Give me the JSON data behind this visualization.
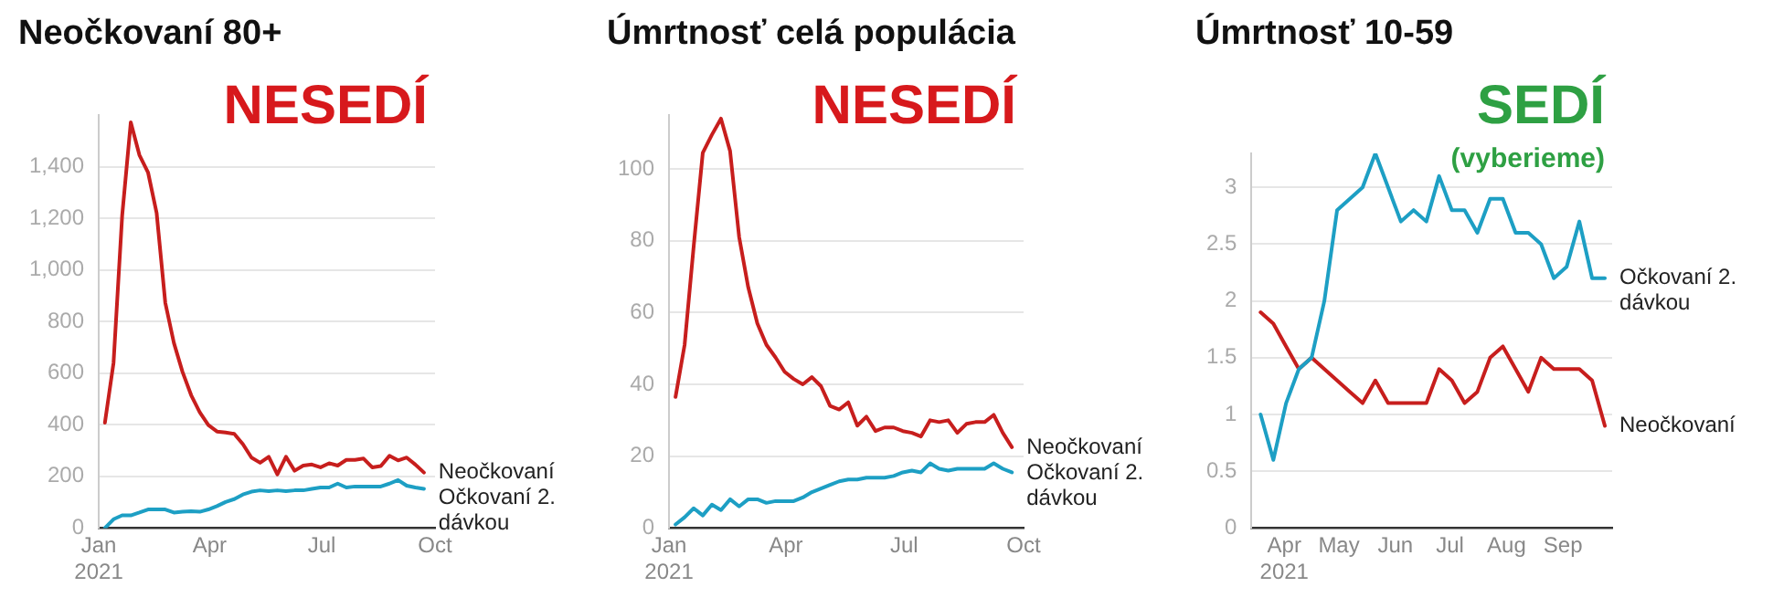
{
  "chart_data": [
    {
      "type": "line",
      "title": "Neočkovaní 80+",
      "annotations": [
        "NESEDÍ"
      ],
      "grid": "y",
      "legend": false,
      "marker": "none",
      "line_style": "solid",
      "x": [
        "2021-01-06",
        "2021-01-13",
        "2021-01-20",
        "2021-01-27",
        "2021-02-03",
        "2021-02-10",
        "2021-02-17",
        "2021-02-24",
        "2021-03-03",
        "2021-03-10",
        "2021-03-17",
        "2021-03-24",
        "2021-03-31",
        "2021-04-07",
        "2021-04-14",
        "2021-04-21",
        "2021-04-28",
        "2021-05-05",
        "2021-05-12",
        "2021-05-19",
        "2021-05-26",
        "2021-06-02",
        "2021-06-09",
        "2021-06-16",
        "2021-06-23",
        "2021-06-30",
        "2021-07-07",
        "2021-07-14",
        "2021-07-21",
        "2021-07-28",
        "2021-08-04",
        "2021-08-11",
        "2021-08-18",
        "2021-08-25",
        "2021-09-01",
        "2021-09-08",
        "2021-09-15",
        "2021-09-22"
      ],
      "xlim": [
        "2021-01-01",
        "2021-10-01"
      ],
      "xticks": [
        {
          "value": "2021-01-01",
          "label": "Jan\n2021"
        },
        {
          "value": "2021-04-01",
          "label": "Apr"
        },
        {
          "value": "2021-07-01",
          "label": "Jul"
        },
        {
          "value": "2021-10-01",
          "label": "Oct"
        }
      ],
      "ylim": [
        0,
        1600
      ],
      "yticks": [
        0,
        200,
        400,
        600,
        800,
        {
          "value": 1000,
          "label": "1,000"
        },
        {
          "value": 1200,
          "label": "1,200"
        },
        {
          "value": 1400,
          "label": "1,400"
        }
      ],
      "series": [
        {
          "name": "Neočkovaní",
          "color": "#c71e1d",
          "values": [
            408,
            640,
            1210,
            1572,
            1445,
            1378,
            1220,
            873,
            717,
            605,
            515,
            448,
            399,
            374,
            370,
            365,
            325,
            273,
            253,
            276,
            208,
            276,
            222,
            242,
            246,
            235,
            251,
            242,
            264,
            264,
            269,
            235,
            240,
            280,
            262,
            273,
            246,
            215
          ]
        },
        {
          "name": "Očkovaní 2. dávkou",
          "color": "#1d9fc4",
          "values": [
            0,
            34,
            49,
            49,
            60,
            72,
            72,
            72,
            60,
            63,
            65,
            63,
            72,
            85,
            101,
            112,
            130,
            141,
            146,
            143,
            146,
            143,
            146,
            146,
            152,
            157,
            157,
            172,
            157,
            161,
            161,
            161,
            161,
            172,
            186,
            164,
            157,
            152
          ]
        }
      ]
    },
    {
      "type": "line",
      "title": "Úmrtnosť celá populácia",
      "annotations": [
        "NESEDÍ"
      ],
      "grid": "y",
      "legend": false,
      "marker": "none",
      "line_style": "solid",
      "x": [
        "2021-01-06",
        "2021-01-13",
        "2021-01-20",
        "2021-01-27",
        "2021-02-03",
        "2021-02-10",
        "2021-02-17",
        "2021-02-24",
        "2021-03-03",
        "2021-03-10",
        "2021-03-17",
        "2021-03-24",
        "2021-03-31",
        "2021-04-07",
        "2021-04-14",
        "2021-04-21",
        "2021-04-28",
        "2021-05-05",
        "2021-05-12",
        "2021-05-19",
        "2021-05-26",
        "2021-06-02",
        "2021-06-09",
        "2021-06-16",
        "2021-06-23",
        "2021-06-30",
        "2021-07-07",
        "2021-07-14",
        "2021-07-21",
        "2021-07-28",
        "2021-08-04",
        "2021-08-11",
        "2021-08-18",
        "2021-08-25",
        "2021-09-01",
        "2021-09-08",
        "2021-09-15",
        "2021-09-22"
      ],
      "xlim": [
        "2021-01-01",
        "2021-10-01"
      ],
      "xticks": [
        {
          "value": "2021-01-01",
          "label": "Jan\n2021"
        },
        {
          "value": "2021-04-01",
          "label": "Apr"
        },
        {
          "value": "2021-07-01",
          "label": "Jul"
        },
        {
          "value": "2021-10-01",
          "label": "Oct"
        }
      ],
      "ylim": [
        0,
        115
      ],
      "yticks": [
        0,
        20,
        40,
        60,
        80,
        100
      ],
      "series": [
        {
          "name": "Neočkovaní",
          "color": "#c71e1d",
          "values": [
            36.5,
            51,
            78.5,
            104.5,
            109.5,
            114,
            105,
            81,
            67,
            57,
            51,
            47.5,
            43.5,
            41.5,
            40,
            42,
            39.5,
            34,
            33,
            35,
            28.5,
            31,
            27,
            28,
            28,
            27,
            26.5,
            25.5,
            30,
            29.5,
            30,
            26.5,
            29,
            29.5,
            29.5,
            31.5,
            26.5,
            22.5
          ]
        },
        {
          "name": "Očkovaní 2. dávkou",
          "color": "#1d9fc4",
          "values": [
            1,
            3,
            5.5,
            3.5,
            6.5,
            5,
            8,
            6,
            8,
            8,
            7,
            7.5,
            7.5,
            7.5,
            8.5,
            10,
            11,
            12,
            13,
            13.5,
            13.5,
            14,
            14,
            14,
            14.5,
            15.5,
            16,
            15.5,
            18,
            16.5,
            16,
            16.5,
            16.5,
            16.5,
            16.5,
            18,
            16.5,
            15.5
          ]
        }
      ]
    },
    {
      "type": "line",
      "title": "Úmrtnosť 10-59",
      "annotations": [
        "SEDÍ",
        "(vyberieme)"
      ],
      "grid": "y",
      "legend": false,
      "marker": "none",
      "line_style": "solid",
      "x": [
        "2021-03-19",
        "2021-03-26",
        "2021-04-02",
        "2021-04-09",
        "2021-04-16",
        "2021-04-23",
        "2021-04-30",
        "2021-05-07",
        "2021-05-14",
        "2021-05-21",
        "2021-05-28",
        "2021-06-04",
        "2021-06-11",
        "2021-06-18",
        "2021-06-25",
        "2021-07-02",
        "2021-07-09",
        "2021-07-16",
        "2021-07-23",
        "2021-07-30",
        "2021-08-06",
        "2021-08-13",
        "2021-08-20",
        "2021-08-27",
        "2021-09-03",
        "2021-09-10",
        "2021-09-17",
        "2021-09-24"
      ],
      "xlim": [
        "2021-03-14",
        "2021-09-28"
      ],
      "xticks": [
        {
          "value": "2021-04-01",
          "label": "Apr\n2021"
        },
        {
          "value": "2021-05-01",
          "label": "May"
        },
        {
          "value": "2021-06-01",
          "label": "Jun"
        },
        {
          "value": "2021-07-01",
          "label": "Jul"
        },
        {
          "value": "2021-08-01",
          "label": "Aug"
        },
        {
          "value": "2021-09-01",
          "label": "Sep"
        }
      ],
      "ylim": [
        0,
        3.3
      ],
      "yticks": [
        0,
        0.5,
        1,
        1.5,
        2,
        2.5,
        3
      ],
      "series": [
        {
          "name": "Očkovaní 2. dávkou",
          "color": "#1d9fc4",
          "values": [
            1.0,
            0.6,
            1.1,
            1.4,
            1.5,
            2.0,
            2.8,
            2.9,
            3.0,
            3.3,
            3.0,
            2.7,
            2.8,
            2.7,
            3.1,
            2.8,
            2.8,
            2.6,
            2.9,
            2.9,
            2.6,
            2.6,
            2.5,
            2.2,
            2.3,
            2.7,
            2.2,
            2.2
          ]
        },
        {
          "name": "Neočkovaní",
          "color": "#c71e1d",
          "values": [
            1.9,
            1.8,
            1.6,
            1.4,
            1.5,
            1.4,
            1.3,
            1.2,
            1.1,
            1.3,
            1.1,
            1.1,
            1.1,
            1.1,
            1.4,
            1.3,
            1.1,
            1.2,
            1.5,
            1.6,
            1.4,
            1.2,
            1.5,
            1.4,
            1.4,
            1.4,
            1.3,
            0.9
          ]
        }
      ]
    }
  ]
}
